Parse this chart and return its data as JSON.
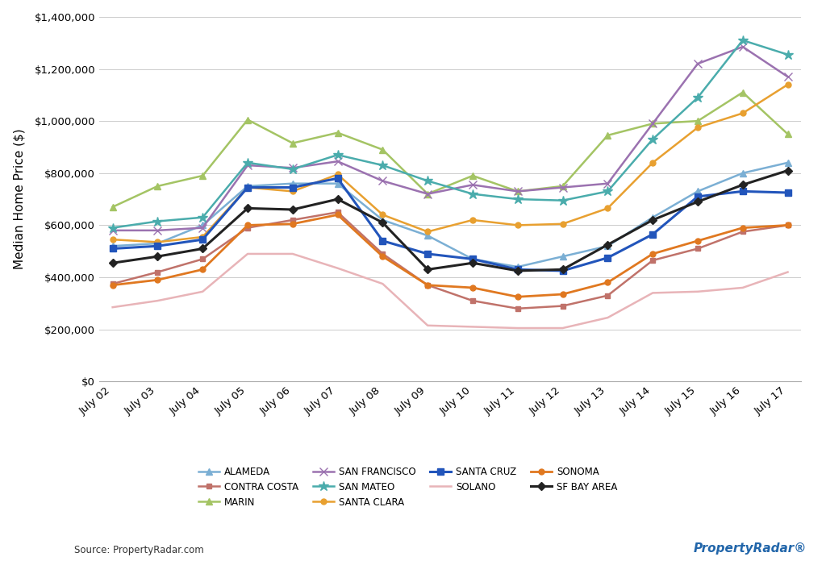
{
  "x_labels": [
    "July 02",
    "July 03",
    "July 04",
    "July 05",
    "July 06",
    "July 07",
    "July 08",
    "July 09",
    "July 10",
    "July 11",
    "July 12",
    "July 13",
    "July 14",
    "July 15",
    "July 16",
    "July 17"
  ],
  "ylabel": "Median Home Price ($)",
  "source": "Source: PropertyRadar.com",
  "ylim": [
    0,
    1400000
  ],
  "yticks": [
    0,
    200000,
    400000,
    600000,
    800000,
    1000000,
    1200000,
    1400000
  ],
  "series": {
    "ALAMEDA": {
      "color": "#7BAFD4",
      "marker": "^",
      "markersize": 6,
      "linewidth": 1.8,
      "values": [
        520000,
        530000,
        600000,
        750000,
        760000,
        760000,
        620000,
        560000,
        470000,
        440000,
        480000,
        520000,
        630000,
        730000,
        800000,
        840000
      ]
    },
    "CONTRA COSTA": {
      "color": "#C0726A",
      "marker": "s",
      "markersize": 5,
      "linewidth": 1.8,
      "values": [
        375000,
        420000,
        470000,
        590000,
        620000,
        650000,
        490000,
        370000,
        310000,
        280000,
        290000,
        330000,
        465000,
        510000,
        575000,
        600000
      ]
    },
    "MARIN": {
      "color": "#A4C464",
      "marker": "^",
      "markersize": 6,
      "linewidth": 1.8,
      "values": [
        670000,
        750000,
        790000,
        1005000,
        915000,
        955000,
        890000,
        720000,
        790000,
        730000,
        750000,
        945000,
        990000,
        1000000,
        1110000,
        950000
      ]
    },
    "SAN FRANCISCO": {
      "color": "#9B72B0",
      "marker": "x",
      "markersize": 7,
      "linewidth": 1.8,
      "values": [
        580000,
        580000,
        590000,
        830000,
        820000,
        845000,
        770000,
        720000,
        755000,
        730000,
        745000,
        760000,
        990000,
        1220000,
        1285000,
        1170000
      ]
    },
    "SAN MATEO": {
      "color": "#4AACAC",
      "marker": "*",
      "markersize": 9,
      "linewidth": 1.8,
      "values": [
        590000,
        615000,
        630000,
        840000,
        815000,
        870000,
        830000,
        770000,
        720000,
        700000,
        695000,
        730000,
        930000,
        1090000,
        1310000,
        1255000
      ]
    },
    "SANTA CLARA": {
      "color": "#E8A030",
      "marker": "o",
      "markersize": 5,
      "linewidth": 1.8,
      "values": [
        545000,
        535000,
        555000,
        745000,
        730000,
        795000,
        640000,
        575000,
        620000,
        600000,
        605000,
        665000,
        840000,
        975000,
        1030000,
        1140000
      ]
    },
    "SANTA CRUZ": {
      "color": "#2255BB",
      "marker": "s",
      "markersize": 6,
      "linewidth": 2.2,
      "values": [
        510000,
        520000,
        545000,
        745000,
        745000,
        780000,
        540000,
        490000,
        470000,
        430000,
        425000,
        475000,
        565000,
        710000,
        730000,
        725000
      ]
    },
    "SOLANO": {
      "color": "#E8B4B8",
      "marker": "",
      "markersize": 0,
      "linewidth": 1.8,
      "values": [
        285000,
        310000,
        345000,
        490000,
        490000,
        435000,
        375000,
        215000,
        210000,
        205000,
        205000,
        245000,
        340000,
        345000,
        360000,
        420000
      ]
    },
    "SONOMA": {
      "color": "#E07820",
      "marker": "o",
      "markersize": 5,
      "linewidth": 2.0,
      "values": [
        370000,
        390000,
        430000,
        600000,
        605000,
        640000,
        480000,
        370000,
        360000,
        325000,
        335000,
        380000,
        490000,
        540000,
        590000,
        600000
      ]
    },
    "SF BAY AREA": {
      "color": "#222222",
      "marker": "D",
      "markersize": 5,
      "linewidth": 2.2,
      "values": [
        455000,
        480000,
        510000,
        665000,
        660000,
        700000,
        610000,
        430000,
        455000,
        425000,
        430000,
        525000,
        620000,
        690000,
        755000,
        810000
      ]
    }
  },
  "legend_order": [
    "ALAMEDA",
    "CONTRA COSTA",
    "MARIN",
    "SAN FRANCISCO",
    "SAN MATEO",
    "SANTA CLARA",
    "SANTA CRUZ",
    "SOLANO",
    "SONOMA",
    "SF BAY AREA"
  ],
  "background_color": "#ffffff",
  "plot_background": "#ffffff"
}
